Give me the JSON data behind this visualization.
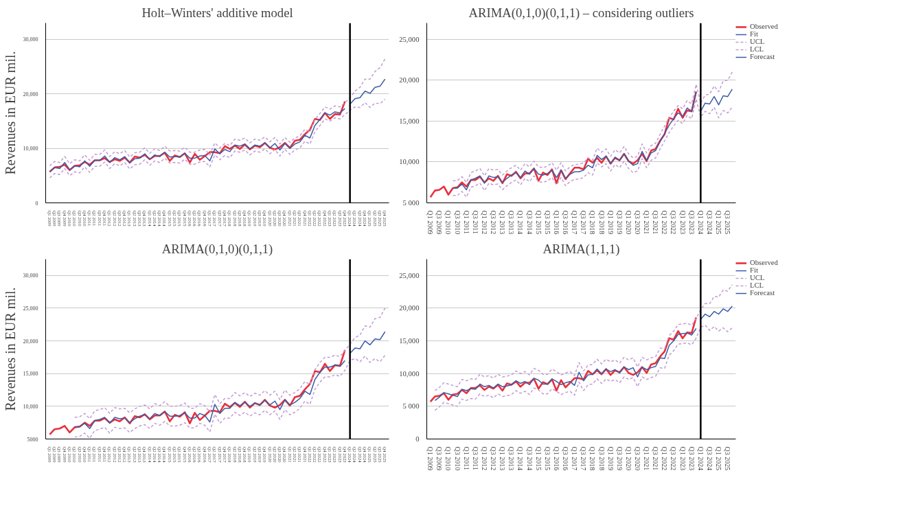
{
  "chart_data": [
    {
      "type": "line",
      "title": "Holt–Winters' additive model",
      "ylabel": "Revenues in EUR mil.",
      "grid": "y",
      "legend": false,
      "categories": [
        "Q1 2009",
        "Q2 2009",
        "Q3 2009",
        "Q4 2009",
        "Q1 2010",
        "Q2 2010",
        "Q3 2010",
        "Q4 2010",
        "Q1 2011",
        "Q2 2011",
        "Q3 2011",
        "Q4 2011",
        "Q1 2012",
        "Q2 2012",
        "Q3 2012",
        "Q4 2012",
        "Q1 2013",
        "Q2 2013",
        "Q3 2013",
        "Q4 2013",
        "Q1 2014",
        "Q2 2014",
        "Q3 2014",
        "Q4 2014",
        "Q1 2015",
        "Q2 2015",
        "Q3 2015",
        "Q4 2015",
        "Q1 2016",
        "Q2 2016",
        "Q3 2016",
        "Q4 2016",
        "Q1 2017",
        "Q2 2017",
        "Q3 2017",
        "Q4 2017",
        "Q1 2018",
        "Q2 2018",
        "Q3 2018",
        "Q4 2018",
        "Q1 2019",
        "Q2 2019",
        "Q3 2019",
        "Q4 2019",
        "Q1 2020",
        "Q2 2020",
        "Q3 2020",
        "Q4 2020",
        "Q1 2021",
        "Q2 2021",
        "Q3 2021",
        "Q4 2021",
        "Q1 2022",
        "Q2 2022",
        "Q3 2022",
        "Q4 2022",
        "Q1 2023",
        "Q2 2023",
        "Q3 2023",
        "Q4 2023",
        "Q1 2024",
        "Q2 2024",
        "Q3 2024",
        "Q4 2024",
        "Q1 2025",
        "Q2 2025",
        "Q3 2025",
        "Q4 2025"
      ],
      "ylim": [
        0,
        33000
      ],
      "yticks": [
        0,
        {
          "value": 10000,
          "label": "10,000"
        },
        {
          "value": 20000,
          "label": "20,000"
        },
        {
          "value": 30000,
          "label": "30,000"
        }
      ],
      "ref_lines": [
        {
          "axis": "x",
          "value": "Q1 2024",
          "color": "#000000"
        }
      ],
      "series": [
        {
          "color": "#e8303a",
          "values": [
            5700,
            6500,
            6600,
            7000,
            6000,
            6800,
            6900,
            7500,
            7000,
            7800,
            7800,
            8200,
            7500,
            8000,
            7700,
            8300,
            7400,
            8500,
            8300,
            8800,
            8000,
            8600,
            8600,
            9200,
            7700,
            8700,
            8400,
            9100,
            7400,
            9000,
            7900,
            8600,
            9300,
            9300,
            9100,
            10400,
            9900,
            10500,
            9900,
            10700,
            9800,
            10500,
            10200,
            11000,
            10100,
            9800,
            10200,
            11000,
            10100,
            11400,
            11600,
            12600,
            13400,
            15400,
            15200,
            16500,
            15400,
            16300,
            16200,
            18600,
            null,
            null,
            null,
            null,
            null,
            null,
            null,
            null
          ]
        },
        {
          "color": "#3a5ba8",
          "values": [
            5700,
            6500,
            6300,
            7400,
            6100,
            6800,
            6600,
            7700,
            6700,
            7800,
            7800,
            8600,
            7400,
            8300,
            7900,
            8500,
            7300,
            8100,
            8200,
            9000,
            8000,
            8800,
            8500,
            9300,
            8400,
            8500,
            8400,
            9100,
            8200,
            8200,
            8600,
            8700,
            7700,
            9900,
            9000,
            9800,
            9400,
            10600,
            10400,
            10800,
            9900,
            10600,
            10400,
            11000,
            10100,
            10900,
            9700,
            10900,
            10000,
            10800,
            11200,
            12400,
            11900,
            14200,
            15300,
            16500,
            16100,
            16700,
            16500,
            17300,
            null,
            null,
            null,
            null,
            null,
            null,
            null,
            null
          ]
        },
        {
          "color": "#c39bd3",
          "line_style": "dashed",
          "values": [
            6800,
            7600,
            7400,
            8500,
            7200,
            7900,
            7700,
            8800,
            7800,
            8900,
            8900,
            9700,
            8500,
            9400,
            9000,
            9600,
            8400,
            9200,
            9300,
            10100,
            9100,
            9900,
            9600,
            10400,
            9500,
            9600,
            9500,
            10200,
            9300,
            9300,
            9700,
            9800,
            8800,
            11000,
            10100,
            10900,
            10500,
            11700,
            11500,
            11900,
            11000,
            11700,
            11500,
            12100,
            11200,
            12000,
            10800,
            12000,
            11100,
            11900,
            12300,
            13500,
            13000,
            15300,
            16400,
            17600,
            17200,
            17800,
            17600,
            18400,
            19300,
            20500,
            21200,
            22700,
            22700,
            24100,
            24800,
            26400
          ]
        },
        {
          "color": "#c39bd3",
          "line_style": "dashed",
          "values": [
            4600,
            5400,
            5200,
            6300,
            5000,
            5700,
            5500,
            6600,
            5600,
            6700,
            6700,
            7500,
            6300,
            7200,
            6800,
            7400,
            6200,
            7000,
            7100,
            7900,
            6900,
            7700,
            7400,
            8200,
            7300,
            7400,
            7300,
            8000,
            7100,
            7100,
            7500,
            7600,
            6600,
            8800,
            7900,
            8700,
            8300,
            9500,
            9300,
            9700,
            8800,
            9500,
            9300,
            9900,
            9000,
            9800,
            8600,
            9800,
            8900,
            9700,
            10100,
            11300,
            10800,
            13100,
            14200,
            15400,
            15000,
            15600,
            15400,
            16200,
            17000,
            17600,
            17500,
            18400,
            17500,
            18300,
            18200,
            19000
          ]
        },
        {
          "color": "#3a5ba8",
          "values": [
            null,
            null,
            null,
            null,
            null,
            null,
            null,
            null,
            null,
            null,
            null,
            null,
            null,
            null,
            null,
            null,
            null,
            null,
            null,
            null,
            null,
            null,
            null,
            null,
            null,
            null,
            null,
            null,
            null,
            null,
            null,
            null,
            null,
            null,
            null,
            null,
            null,
            null,
            null,
            null,
            null,
            null,
            null,
            null,
            null,
            null,
            null,
            null,
            null,
            null,
            null,
            null,
            null,
            null,
            null,
            null,
            null,
            null,
            null,
            null,
            18100,
            19100,
            19300,
            20500,
            20100,
            21200,
            21400,
            22700
          ]
        }
      ]
    },
    {
      "type": "line",
      "title": "ARIMA(0,1,0)(0,1,1) – considering outliers",
      "grid": "y",
      "legend": "right",
      "categories": [
        "Q1 2009",
        null,
        "Q3 2009",
        null,
        "Q1 2010",
        null,
        "Q3 2010",
        null,
        "Q1 2011",
        null,
        "Q3 2011",
        null,
        "Q1 2012",
        null,
        "Q3 2012",
        null,
        "Q1 2013",
        null,
        "Q3 2013",
        null,
        "Q1 2014",
        null,
        "Q3 2014",
        null,
        "Q1 2015",
        null,
        "Q3 2015",
        null,
        "Q1 2016",
        null,
        "Q3 2016",
        null,
        "Q1 2017",
        null,
        "Q3 2017",
        null,
        "Q1 2018",
        null,
        "Q3 2018",
        null,
        "Q1 2019",
        null,
        "Q3 2019",
        null,
        "Q1 2020",
        null,
        "Q3 2020",
        null,
        "Q1 2021",
        null,
        "Q3 2021",
        null,
        "Q1 2022",
        null,
        "Q3 2022",
        null,
        "Q1 2023",
        null,
        "Q3 2023",
        null,
        "Q1 2024",
        null,
        "Q3 2024",
        null,
        "Q1 2025",
        null,
        "Q3 2025",
        null
      ],
      "ylim": [
        5000,
        27000
      ],
      "yticks": [
        {
          "value": 5000,
          "label": "5 000"
        },
        {
          "value": 10000,
          "label": "10,000"
        },
        {
          "value": 15000,
          "label": "15,000"
        },
        {
          "value": 20000,
          "label": "20,000"
        },
        {
          "value": 25000,
          "label": "25,000"
        }
      ],
      "ref_lines": [
        {
          "axis": "x",
          "value": "Q1 2024",
          "color": "#000000"
        }
      ],
      "series": [
        {
          "name": "Observed",
          "color": "#e8303a",
          "values": [
            5700,
            6500,
            6600,
            7000,
            6000,
            6800,
            6900,
            7500,
            7000,
            7800,
            7800,
            8200,
            7500,
            8000,
            7700,
            8300,
            7400,
            8500,
            8300,
            8800,
            8000,
            8600,
            8600,
            9200,
            7700,
            8700,
            8400,
            9100,
            7400,
            9000,
            7900,
            8600,
            9300,
            9300,
            9100,
            10400,
            9900,
            10500,
            9900,
            10700,
            9800,
            10500,
            10200,
            11000,
            10100,
            9800,
            10200,
            11000,
            10100,
            11400,
            11600,
            12600,
            13400,
            15400,
            15200,
            16500,
            15400,
            16300,
            16200,
            18600,
            null,
            null,
            null,
            null,
            null,
            null,
            null,
            null
          ]
        },
        {
          "name": "Fit",
          "color": "#3a5ba8",
          "values": [
            null,
            null,
            null,
            null,
            null,
            6800,
            6800,
            7300,
            6600,
            7800,
            8000,
            8300,
            7400,
            8300,
            8100,
            8200,
            7500,
            8000,
            8400,
            8700,
            8100,
            8900,
            8500,
            9200,
            8500,
            8400,
            8600,
            9000,
            8100,
            9000,
            8000,
            8500,
            8800,
            8800,
            9000,
            9600,
            9300,
            10800,
            10300,
            10700,
            9800,
            10600,
            10200,
            11000,
            10100,
            9600,
            9800,
            11300,
            10200,
            11100,
            11400,
            12500,
            13500,
            14500,
            15300,
            16000,
            15600,
            16600,
            16200,
            18600,
            null,
            null,
            null,
            null,
            null,
            null,
            null,
            null
          ]
        },
        {
          "name": "UCL",
          "color": "#c39bd3",
          "line_style": "dashed",
          "values": [
            null,
            null,
            null,
            null,
            null,
            7700,
            7700,
            8200,
            7500,
            8700,
            8900,
            9200,
            8300,
            9200,
            9000,
            9100,
            8400,
            8900,
            9300,
            9600,
            9000,
            9800,
            9400,
            10100,
            9400,
            9300,
            9500,
            9900,
            9000,
            9900,
            8900,
            9400,
            9700,
            9700,
            9900,
            10500,
            10200,
            11700,
            11200,
            11600,
            10700,
            11500,
            11100,
            11900,
            11000,
            10500,
            10700,
            12200,
            11100,
            12000,
            12300,
            13400,
            14400,
            15400,
            16200,
            16900,
            16500,
            17500,
            17100,
            19500,
            17200,
            18200,
            18300,
            19300,
            18600,
            19900,
            20000,
            21000
          ]
        },
        {
          "name": "LCL",
          "color": "#c39bd3",
          "line_style": "dashed",
          "values": [
            null,
            null,
            null,
            null,
            null,
            5900,
            5900,
            6400,
            5700,
            6900,
            7100,
            7400,
            6500,
            7400,
            7200,
            7300,
            6600,
            7100,
            7500,
            7800,
            7200,
            8000,
            7600,
            8300,
            7600,
            7500,
            7700,
            8100,
            7200,
            8100,
            7100,
            7600,
            7900,
            7900,
            8100,
            8700,
            8400,
            9900,
            9400,
            9800,
            8900,
            9700,
            9300,
            10100,
            9200,
            8700,
            8900,
            10400,
            9300,
            10200,
            10500,
            11600,
            12600,
            13600,
            14400,
            15100,
            14700,
            15700,
            15300,
            17700,
            15500,
            16200,
            15900,
            16700,
            15400,
            16300,
            16000,
            16700
          ]
        },
        {
          "name": "Forecast",
          "color": "#3a5ba8",
          "values": [
            null,
            null,
            null,
            null,
            null,
            null,
            null,
            null,
            null,
            null,
            null,
            null,
            null,
            null,
            null,
            null,
            null,
            null,
            null,
            null,
            null,
            null,
            null,
            null,
            null,
            null,
            null,
            null,
            null,
            null,
            null,
            null,
            null,
            null,
            null,
            null,
            null,
            null,
            null,
            null,
            null,
            null,
            null,
            null,
            null,
            null,
            null,
            null,
            null,
            null,
            null,
            null,
            null,
            null,
            null,
            null,
            null,
            null,
            null,
            null,
            16200,
            17200,
            17100,
            18000,
            17000,
            18100,
            18000,
            18900
          ]
        }
      ]
    },
    {
      "type": "line",
      "title": "ARIMA(0,1,0)(0,1,1)",
      "ylabel": "Revenues in EUR mil.",
      "grid": "y",
      "legend": false,
      "categories": [
        "Q1 2009",
        "Q2 2009",
        "Q3 2009",
        "Q4 2009",
        "Q1 2010",
        "Q2 2010",
        "Q3 2010",
        "Q4 2010",
        "Q1 2011",
        "Q2 2011",
        "Q3 2011",
        "Q4 2011",
        "Q1 2012",
        "Q2 2012",
        "Q3 2012",
        "Q4 2012",
        "Q1 2013",
        "Q2 2013",
        "Q3 2013",
        "Q4 2013",
        "Q1 2014",
        "Q2 2014",
        "Q3 2014",
        "Q4 2014",
        "Q1 2015",
        "Q2 2015",
        "Q3 2015",
        "Q4 2015",
        "Q1 2016",
        "Q2 2016",
        "Q3 2016",
        "Q4 2016",
        "Q1 2017",
        "Q2 2017",
        "Q3 2017",
        "Q4 2017",
        "Q1 2018",
        "Q2 2018",
        "Q3 2018",
        "Q4 2018",
        "Q1 2019",
        "Q2 2019",
        "Q3 2019",
        "Q4 2019",
        "Q1 2020",
        "Q2 2020",
        "Q3 2020",
        "Q4 2020",
        "Q1 2021",
        "Q2 2021",
        "Q3 2021",
        "Q4 2021",
        "Q1 2022",
        "Q2 2022",
        "Q3 2022",
        "Q4 2022",
        "Q1 2023",
        "Q2 2023",
        "Q3 2023",
        "Q4 2023",
        "Q1 2024",
        "Q2 2024",
        "Q3 2024",
        "Q4 2024",
        "Q1 2025",
        "Q2 2025",
        "Q3 2025",
        "Q4 2025"
      ],
      "ylim": [
        5000,
        32500
      ],
      "yticks": [
        5000,
        {
          "value": 10000,
          "label": "10,000"
        },
        {
          "value": 15000,
          "label": "15,000"
        },
        {
          "value": 20000,
          "label": "20,000"
        },
        {
          "value": 25000,
          "label": "25,000"
        },
        {
          "value": 30000,
          "label": "30,000"
        }
      ],
      "ref_lines": [
        {
          "axis": "x",
          "value": "Q1 2024",
          "color": "#000000"
        }
      ],
      "series": [
        {
          "color": "#e8303a",
          "values": [
            5700,
            6500,
            6600,
            7000,
            6000,
            6800,
            6900,
            7500,
            7000,
            7800,
            7800,
            8200,
            7500,
            8000,
            7700,
            8300,
            7400,
            8500,
            8300,
            8800,
            8000,
            8600,
            8600,
            9200,
            7700,
            8700,
            8400,
            9100,
            7400,
            9000,
            7900,
            8600,
            9300,
            9300,
            9100,
            10400,
            9900,
            10500,
            9900,
            10700,
            9800,
            10500,
            10200,
            11000,
            10100,
            9800,
            10200,
            11000,
            10100,
            11400,
            11600,
            12600,
            13400,
            15400,
            15200,
            16500,
            15400,
            16300,
            16200,
            18600,
            null,
            null,
            null,
            null,
            null,
            null,
            null,
            null
          ]
        },
        {
          "color": "#3a5ba8",
          "values": [
            null,
            null,
            null,
            null,
            null,
            6800,
            6900,
            7400,
            6600,
            7800,
            8000,
            8300,
            7400,
            8300,
            8100,
            8200,
            7500,
            8100,
            8500,
            8700,
            8100,
            8900,
            8600,
            9200,
            8500,
            8500,
            8600,
            9000,
            8200,
            8200,
            8900,
            8600,
            7600,
            10300,
            8900,
            9700,
            9700,
            10600,
            10100,
            10600,
            10000,
            10500,
            10200,
            10900,
            10200,
            10800,
            9500,
            11000,
            10200,
            10600,
            11200,
            12300,
            11800,
            14100,
            15200,
            16000,
            16000,
            16300,
            16100,
            17000,
            null,
            null,
            null,
            null,
            null,
            null,
            null,
            null
          ]
        },
        {
          "color": "#c39bd3",
          "line_style": "dashed",
          "values": [
            null,
            null,
            null,
            null,
            null,
            8300,
            8400,
            8900,
            8100,
            9300,
            9500,
            9800,
            8900,
            9800,
            9600,
            9700,
            9000,
            9600,
            10000,
            10200,
            9600,
            10400,
            10100,
            10700,
            10000,
            10000,
            10100,
            10500,
            9700,
            9700,
            10400,
            10100,
            9100,
            11800,
            10400,
            11200,
            11200,
            12100,
            11600,
            12100,
            11500,
            12000,
            11700,
            12400,
            11700,
            12300,
            11000,
            12500,
            11700,
            12100,
            12700,
            13800,
            13300,
            15600,
            16700,
            17500,
            17500,
            17800,
            17600,
            18500,
            19500,
            20500,
            20900,
            22300,
            22100,
            23400,
            23600,
            25000
          ]
        },
        {
          "color": "#c39bd3",
          "line_style": "dashed",
          "values": [
            null,
            null,
            null,
            null,
            null,
            5300,
            5400,
            5900,
            5100,
            6300,
            6500,
            6800,
            5900,
            6800,
            6600,
            6700,
            6000,
            6600,
            7000,
            7200,
            6600,
            7400,
            7100,
            7700,
            7000,
            7000,
            7100,
            7500,
            6700,
            6700,
            7400,
            7100,
            6100,
            8800,
            7400,
            8200,
            8200,
            9100,
            8600,
            9100,
            8500,
            9000,
            8700,
            9400,
            8700,
            9300,
            8000,
            9500,
            8700,
            9100,
            9700,
            10800,
            10300,
            12600,
            13700,
            14500,
            14500,
            14800,
            14600,
            15500,
            17000,
            17300,
            16800,
            17700,
            16700,
            17300,
            16800,
            17800
          ]
        },
        {
          "color": "#3a5ba8",
          "values": [
            null,
            null,
            null,
            null,
            null,
            null,
            null,
            null,
            null,
            null,
            null,
            null,
            null,
            null,
            null,
            null,
            null,
            null,
            null,
            null,
            null,
            null,
            null,
            null,
            null,
            null,
            null,
            null,
            null,
            null,
            null,
            null,
            null,
            null,
            null,
            null,
            null,
            null,
            null,
            null,
            null,
            null,
            null,
            null,
            null,
            null,
            null,
            null,
            null,
            null,
            null,
            null,
            null,
            null,
            null,
            null,
            null,
            null,
            null,
            null,
            18100,
            18900,
            18800,
            20000,
            19400,
            20300,
            20200,
            21400
          ]
        }
      ]
    },
    {
      "type": "line",
      "title": "ARIMA(1,1,1)",
      "grid": "y",
      "legend": "right",
      "categories": [
        "Q1 2009",
        null,
        "Q3 2009",
        null,
        "Q1 2010",
        null,
        "Q3 2010",
        null,
        "Q1 2011",
        null,
        "Q3 2011",
        null,
        "Q1 2012",
        null,
        "Q3 2012",
        null,
        "Q1 2013",
        null,
        "Q3 2013",
        null,
        "Q1 2014",
        null,
        "Q3 2014",
        null,
        "Q1 2015",
        null,
        "Q3 2015",
        null,
        "Q1 2016",
        null,
        "Q3 2016",
        null,
        "Q1 2017",
        null,
        "Q3 2017",
        null,
        "Q1 2018",
        null,
        "Q3 2018",
        null,
        "Q1 2019",
        null,
        "Q3 2019",
        null,
        "Q1 2020",
        null,
        "Q3 2020",
        null,
        "Q1 2021",
        null,
        "Q3 2021",
        null,
        "Q1 2022",
        null,
        "Q3 2022",
        null,
        "Q1 2023",
        null,
        "Q3 2023",
        null,
        "Q1 2024",
        null,
        "Q3 2024",
        null,
        "Q1 2025",
        null,
        "Q3 2025",
        null
      ],
      "ylim": [
        0,
        27500
      ],
      "yticks": [
        0,
        {
          "value": 5000,
          "label": "5 000"
        },
        {
          "value": 10000,
          "label": "10,000"
        },
        {
          "value": 15000,
          "label": "15,000"
        },
        {
          "value": 20000,
          "label": "20,000"
        },
        {
          "value": 25000,
          "label": "25,000"
        }
      ],
      "ref_lines": [
        {
          "axis": "x",
          "value": "Q1 2024",
          "color": "#000000"
        }
      ],
      "series": [
        {
          "name": "Observed",
          "color": "#e8303a",
          "values": [
            5700,
            6500,
            6600,
            7000,
            6000,
            6800,
            6900,
            7500,
            7000,
            7800,
            7800,
            8200,
            7500,
            8000,
            7700,
            8300,
            7400,
            8500,
            8300,
            8800,
            8000,
            8600,
            8600,
            9200,
            7700,
            8700,
            8400,
            9100,
            7400,
            9000,
            7900,
            8600,
            9300,
            9300,
            9100,
            10400,
            9900,
            10500,
            9900,
            10700,
            9800,
            10500,
            10200,
            11000,
            10100,
            9800,
            10200,
            11000,
            10100,
            11400,
            11600,
            12600,
            13400,
            15400,
            15200,
            16500,
            15400,
            16300,
            16200,
            18600,
            null,
            null,
            null,
            null,
            null,
            null,
            null,
            null
          ]
        },
        {
          "name": "Fit",
          "color": "#3a5ba8",
          "values": [
            null,
            5900,
            6400,
            7100,
            6900,
            6700,
            6500,
            7600,
            7400,
            7700,
            7600,
            8400,
            8000,
            8200,
            7800,
            8400,
            8000,
            8100,
            8300,
            8900,
            8500,
            8800,
            8300,
            9300,
            9000,
            8400,
            8400,
            9200,
            8800,
            8300,
            8600,
            8800,
            8200,
            10200,
            8900,
            9800,
            9900,
            10700,
            10000,
            10700,
            10300,
            10600,
            10100,
            11000,
            10600,
            10900,
            9500,
            11000,
            10600,
            10900,
            11100,
            12400,
            12300,
            14300,
            15000,
            16000,
            16100,
            16200,
            15900,
            16900,
            null,
            null,
            null,
            null,
            null,
            null,
            null,
            null
          ]
        },
        {
          "name": "UCL",
          "color": "#c39bd3",
          "line_style": "dashed",
          "values": [
            null,
            7400,
            7900,
            8600,
            8400,
            8200,
            8000,
            9100,
            8900,
            9200,
            9100,
            9900,
            9500,
            9700,
            9300,
            9900,
            9500,
            9600,
            9800,
            10400,
            10000,
            10300,
            9800,
            10800,
            10500,
            9900,
            9900,
            10700,
            10300,
            9800,
            10100,
            10300,
            9700,
            11700,
            10400,
            11300,
            11400,
            12200,
            11500,
            12200,
            11800,
            12100,
            11600,
            12500,
            12100,
            12400,
            11000,
            12500,
            12100,
            12400,
            12600,
            13900,
            13800,
            15800,
            16500,
            17500,
            17600,
            17700,
            17400,
            18400,
            19800,
            20700,
            20700,
            21800,
            21700,
            22800,
            22600,
            23600
          ]
        },
        {
          "name": "LCL",
          "color": "#c39bd3",
          "line_style": "dashed",
          "values": [
            null,
            4400,
            4900,
            5600,
            5400,
            5200,
            5000,
            6100,
            5900,
            6200,
            6100,
            6900,
            6500,
            6700,
            6300,
            6900,
            6500,
            6600,
            6800,
            7400,
            7000,
            7300,
            6800,
            7800,
            7500,
            6900,
            6900,
            7700,
            7300,
            6800,
            7100,
            7300,
            6700,
            8700,
            7400,
            8300,
            8400,
            9200,
            8500,
            9200,
            8800,
            9100,
            8600,
            9500,
            9100,
            9400,
            8000,
            9500,
            9100,
            9400,
            9600,
            10900,
            10800,
            12800,
            13500,
            14500,
            14600,
            14700,
            14400,
            15400,
            17100,
            17400,
            16600,
            17200,
            16500,
            17000,
            16400,
            17000
          ]
        },
        {
          "name": "Forecast",
          "color": "#3a5ba8",
          "values": [
            null,
            null,
            null,
            null,
            null,
            null,
            null,
            null,
            null,
            null,
            null,
            null,
            null,
            null,
            null,
            null,
            null,
            null,
            null,
            null,
            null,
            null,
            null,
            null,
            null,
            null,
            null,
            null,
            null,
            null,
            null,
            null,
            null,
            null,
            null,
            null,
            null,
            null,
            null,
            null,
            null,
            null,
            null,
            null,
            null,
            null,
            null,
            null,
            null,
            null,
            null,
            null,
            null,
            null,
            null,
            null,
            null,
            null,
            null,
            null,
            18300,
            19100,
            18700,
            19500,
            19100,
            19900,
            19500,
            20300
          ]
        }
      ]
    }
  ]
}
